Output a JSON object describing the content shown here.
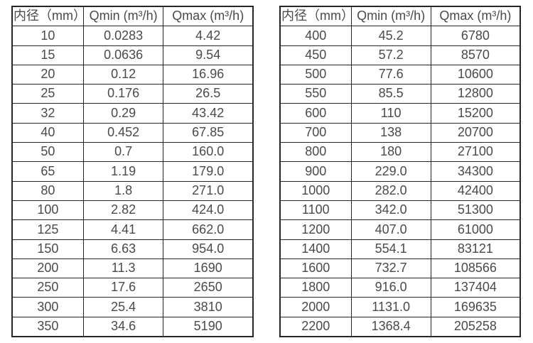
{
  "page": {
    "background_color": "#ffffff",
    "border_color": "#262626",
    "text_color": "#4a4a4a"
  },
  "tables": [
    {
      "name": "flow-table-small-diameters",
      "columns": [
        "内径（mm）",
        "Qmin (m³/h)",
        "Qmax (m³/h)"
      ],
      "rows": [
        [
          "10",
          "0.0283",
          "4.42"
        ],
        [
          "15",
          "0.0636",
          "9.54"
        ],
        [
          "20",
          "0.12",
          "16.96"
        ],
        [
          "25",
          "0.176",
          "26.5"
        ],
        [
          "32",
          "0.29",
          "43.42"
        ],
        [
          "40",
          "0.452",
          "67.85"
        ],
        [
          "50",
          "0.7",
          "160.0"
        ],
        [
          "65",
          "1.19",
          "179.0"
        ],
        [
          "80",
          "1.8",
          "271.0"
        ],
        [
          "100",
          "2.82",
          "424.0"
        ],
        [
          "125",
          "4.41",
          "662.0"
        ],
        [
          "150",
          "6.63",
          "954.0"
        ],
        [
          "200",
          "11.3",
          "1690"
        ],
        [
          "250",
          "17.6",
          "2650"
        ],
        [
          "300",
          "25.4",
          "3810"
        ],
        [
          "350",
          "34.6",
          "5190"
        ]
      ]
    },
    {
      "name": "flow-table-large-diameters",
      "columns": [
        "内径（mm）",
        "Qmin (m³/h)",
        "Qmax (m³/h)"
      ],
      "rows": [
        [
          "400",
          "45.2",
          "6780"
        ],
        [
          "450",
          "57.2",
          "8570"
        ],
        [
          "500",
          "77.6",
          "10600"
        ],
        [
          "550",
          "85.5",
          "12800"
        ],
        [
          "600",
          "110",
          "15200"
        ],
        [
          "700",
          "138",
          "20700"
        ],
        [
          "800",
          "180",
          "27100"
        ],
        [
          "900",
          "229.0",
          "34300"
        ],
        [
          "1000",
          "282.0",
          "42400"
        ],
        [
          "1100",
          "342.0",
          "51300"
        ],
        [
          "1200",
          "407.0",
          "61000"
        ],
        [
          "1400",
          "554.1",
          "83121"
        ],
        [
          "1600",
          "732.7",
          "108566"
        ],
        [
          "1800",
          "916.0",
          "137404"
        ],
        [
          "2000",
          "1131.0",
          "169635"
        ],
        [
          "2200",
          "1368.4",
          "205258"
        ]
      ]
    }
  ]
}
